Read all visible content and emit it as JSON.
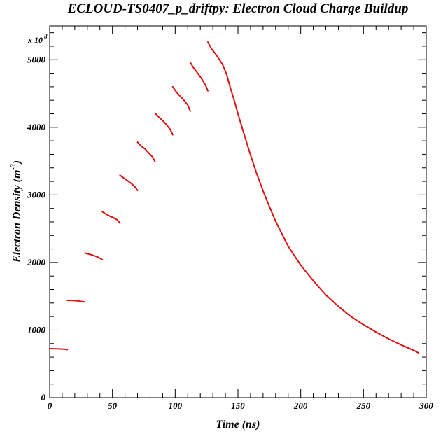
{
  "chart_data": {
    "type": "line",
    "title": "ECLOUD-TS0407_p_driftpy: Electron Cloud Charge Buildup",
    "xlabel": "Time (ns)",
    "ylabel_main": "Electron Density (m",
    "ylabel_exp": "-3",
    "ylabel_close": ")",
    "y_multiplier_base": "x 10",
    "y_multiplier_exp": "8",
    "xlim": [
      0,
      300
    ],
    "ylim": [
      0,
      5500
    ],
    "x_ticks": [
      0,
      50,
      100,
      150,
      200,
      250,
      300
    ],
    "y_ticks": [
      0,
      1000,
      2000,
      3000,
      4000,
      5000
    ],
    "x_tick_labels": [
      "0",
      "50",
      "100",
      "150",
      "200",
      "250",
      "300"
    ],
    "y_tick_labels": [
      "0",
      "1000",
      "2000",
      "3000",
      "4000",
      "5000"
    ],
    "grid": false,
    "line_color": "#e01010",
    "series": [
      {
        "x": [
          0,
          3,
          6,
          9,
          12,
          14
        ],
        "y": [
          725,
          724,
          722,
          720,
          716,
          710
        ]
      },
      {
        "x": [
          14,
          17,
          20,
          23,
          26,
          28
        ],
        "y": [
          1440,
          1439,
          1436,
          1430,
          1422,
          1415
        ]
      },
      {
        "x": [
          28,
          31,
          34,
          37,
          40,
          42
        ],
        "y": [
          2140,
          2125,
          2110,
          2090,
          2065,
          2040
        ]
      },
      {
        "x": [
          42,
          45,
          48,
          51,
          54,
          56
        ],
        "y": [
          2750,
          2715,
          2685,
          2660,
          2630,
          2580
        ]
      },
      {
        "x": [
          56,
          59,
          62,
          65,
          68,
          70
        ],
        "y": [
          3290,
          3250,
          3210,
          3170,
          3120,
          3065
        ]
      },
      {
        "x": [
          70,
          73,
          76,
          79,
          82,
          84
        ],
        "y": [
          3780,
          3720,
          3680,
          3620,
          3560,
          3490
        ]
      },
      {
        "x": [
          84,
          87,
          90,
          93,
          96,
          98
        ],
        "y": [
          4210,
          4150,
          4100,
          4040,
          3970,
          3890
        ]
      },
      {
        "x": [
          98,
          101,
          104,
          107,
          110,
          112
        ],
        "y": [
          4600,
          4520,
          4460,
          4400,
          4330,
          4240
        ]
      },
      {
        "x": [
          112,
          115,
          118,
          121,
          124,
          126
        ],
        "y": [
          4960,
          4870,
          4800,
          4720,
          4630,
          4540
        ]
      },
      {
        "x": [
          126,
          129,
          132,
          135,
          138,
          141,
          144,
          147,
          150,
          155,
          160,
          165,
          170,
          175,
          180,
          190,
          200,
          210,
          220,
          230,
          240,
          250,
          260,
          270,
          280,
          290,
          294
        ],
        "y": [
          5260,
          5160,
          5090,
          5010,
          4920,
          4780,
          4580,
          4400,
          4200,
          3890,
          3590,
          3310,
          3060,
          2830,
          2610,
          2240,
          1960,
          1730,
          1520,
          1350,
          1200,
          1080,
          970,
          870,
          780,
          700,
          660
        ]
      }
    ]
  }
}
